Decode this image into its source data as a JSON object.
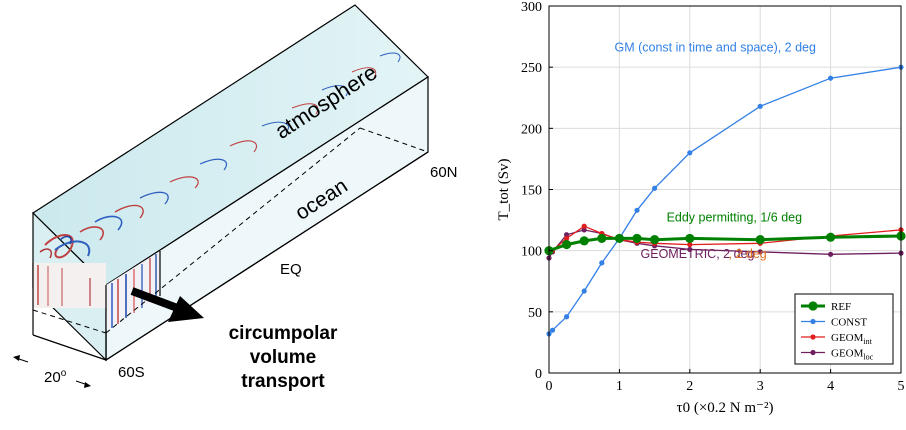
{
  "schematic": {
    "labels": {
      "atmosphere": "atmosphere",
      "ocean": "ocean",
      "lat_60n": "60N",
      "eq": "EQ",
      "lat_60s": "60S",
      "width": "20",
      "width_unit": "o",
      "transport_line1": "circumpolar",
      "transport_line2": "volume",
      "transport_line3": "transport"
    }
  },
  "chart_data": {
    "type": "line",
    "title": "",
    "xlabel": "τ0 (×0.2 N m⁻²)",
    "ylabel": "T_tot (Sv)",
    "xlim": [
      0,
      5
    ],
    "ylim": [
      0,
      300
    ],
    "xticks": [
      0,
      1,
      2,
      3,
      4,
      5
    ],
    "yticks": [
      0,
      50,
      100,
      150,
      200,
      250,
      300
    ],
    "grid": true,
    "legend_position": "bottom-right",
    "series": [
      {
        "name": "REF",
        "color": "#008000",
        "x": [
          0,
          0.25,
          0.5,
          0.75,
          1,
          1.25,
          1.5,
          2,
          3,
          4,
          5
        ],
        "y": [
          100,
          105,
          108,
          110,
          110,
          110,
          109,
          110,
          109,
          111,
          112
        ]
      },
      {
        "name": "CONST",
        "color": "#3380e6",
        "x": [
          0,
          0.05,
          0.25,
          0.5,
          0.75,
          1,
          1.25,
          1.5,
          2,
          3,
          4,
          5
        ],
        "y": [
          32,
          35,
          46,
          67,
          90,
          110,
          133,
          151,
          180,
          218,
          241,
          250
        ]
      },
      {
        "name": "GEOM_int",
        "color": "#e01e1e",
        "x": [
          0,
          0.05,
          0.25,
          0.5,
          0.75,
          1,
          1.25,
          1.5,
          2,
          3,
          4,
          5
        ],
        "y": [
          100,
          100,
          110,
          120,
          114,
          109,
          107,
          106,
          105,
          106,
          112,
          117
        ]
      },
      {
        "name": "GEOM_loc",
        "color": "#702060",
        "x": [
          0,
          0.05,
          0.25,
          0.5,
          0.75,
          1,
          1.25,
          1.5,
          2,
          3,
          4,
          5
        ],
        "y": [
          94,
          99,
          113,
          117,
          114,
          109,
          106,
          104,
          101,
          99,
          97,
          98
        ]
      }
    ],
    "legend_entries": [
      {
        "main": "REF",
        "sub": ""
      },
      {
        "main": "CONST",
        "sub": ""
      },
      {
        "main": "GEOM",
        "sub": "int"
      },
      {
        "main": "GEOM",
        "sub": "loc"
      }
    ],
    "annotations": [
      {
        "text": "GM (const in time and space), 2 deg",
        "color": "#3380e6",
        "x": 0.93,
        "y": 263
      },
      {
        "text": "Eddy permitting, 1/6 deg",
        "color": "#008000",
        "x": 1.67,
        "y": 124
      },
      {
        "text": "GEOMETRIC, 2 deg",
        "color": "#702060",
        "x": 1.3,
        "y": 94
      },
      {
        "text": ", 2 deg",
        "color": "#e07020",
        "x": 2.55,
        "y": 94
      }
    ]
  }
}
